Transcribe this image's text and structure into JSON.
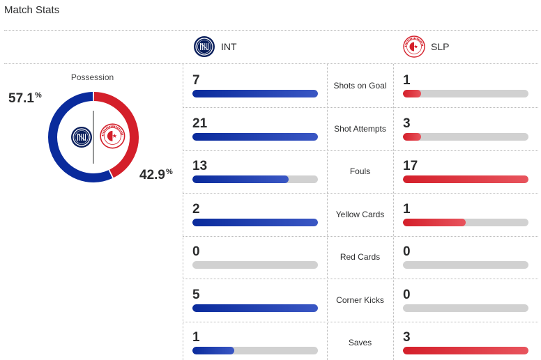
{
  "title": "Match Stats",
  "colors": {
    "int": "#0a2b9c",
    "slp": "#d41f2a",
    "track": "#d1d1d1"
  },
  "teams": {
    "int": {
      "abbr": "INT",
      "logo_icon": "inter-crest-icon"
    },
    "slp": {
      "abbr": "SLP",
      "logo_icon": "slavia-praha-crest-icon"
    }
  },
  "possession": {
    "label": "Possession",
    "int_pct": "57.1",
    "slp_pct": "42.9",
    "pct_symbol": "%",
    "int_fraction": 0.571,
    "slp_fraction": 0.429
  },
  "stats": [
    {
      "label": "Shots on Goal",
      "int": "7",
      "slp": "1",
      "int_fill": 1.0,
      "slp_fill": 0.143
    },
    {
      "label": "Shot Attempts",
      "int": "21",
      "slp": "3",
      "int_fill": 1.0,
      "slp_fill": 0.143
    },
    {
      "label": "Fouls",
      "int": "13",
      "slp": "17",
      "int_fill": 0.765,
      "slp_fill": 1.0
    },
    {
      "label": "Yellow Cards",
      "int": "2",
      "slp": "1",
      "int_fill": 1.0,
      "slp_fill": 0.5
    },
    {
      "label": "Red Cards",
      "int": "0",
      "slp": "0",
      "int_fill": 0.0,
      "slp_fill": 0.0
    },
    {
      "label": "Corner Kicks",
      "int": "5",
      "slp": "0",
      "int_fill": 1.0,
      "slp_fill": 0.0
    },
    {
      "label": "Saves",
      "int": "1",
      "slp": "3",
      "int_fill": 0.333,
      "slp_fill": 1.0
    }
  ]
}
